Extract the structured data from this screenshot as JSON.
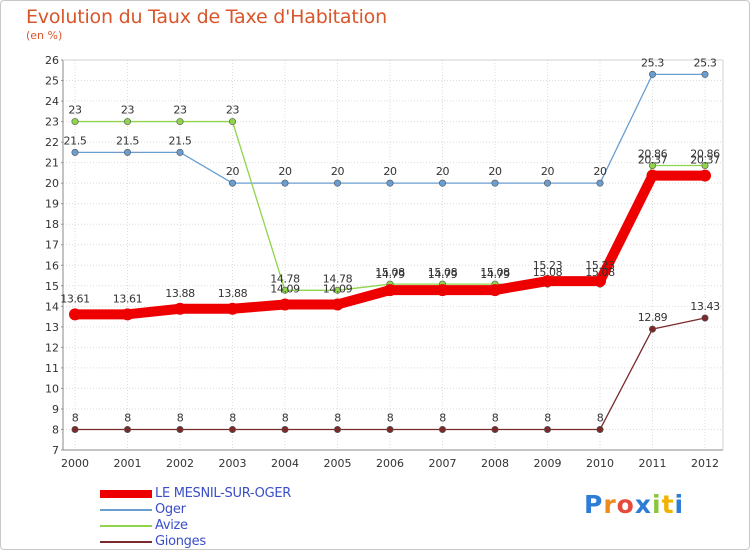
{
  "chart_data": {
    "type": "line",
    "title": "Evolution du Taux de Taxe d'Habitation",
    "unit_label": "(en %)",
    "xlabel": "",
    "ylabel": "",
    "ylim": [
      7,
      26
    ],
    "y_ticks": [
      "7",
      "8",
      "9",
      "10",
      "11",
      "12",
      "13",
      "14",
      "15",
      "16",
      "17",
      "18",
      "19",
      "20",
      "21",
      "22",
      "23",
      "24",
      "25",
      "26"
    ],
    "categories": [
      "2000",
      "2001",
      "2002",
      "2003",
      "2004",
      "2005",
      "2006",
      "2007",
      "2008",
      "2009",
      "2010",
      "2011",
      "2012"
    ],
    "grid": true,
    "legend_position": "bottom-left",
    "series": [
      {
        "name": "LE MESNIL-SUR-OGER",
        "color": "#ee0000",
        "values": [
          13.61,
          13.61,
          13.88,
          13.88,
          14.09,
          14.09,
          14.79,
          14.79,
          14.79,
          15.23,
          15.23,
          20.37,
          20.37
        ],
        "labels": [
          "13.61",
          "13.61",
          "13.88",
          "13.88",
          "14.09",
          "14.09",
          "14.79",
          "14.79",
          "14.79",
          "15.23",
          "15.23",
          "20.37",
          "20.37"
        ]
      },
      {
        "name": "Oger",
        "color": "#6a9ed0",
        "values": [
          21.5,
          21.5,
          21.5,
          20,
          20,
          20,
          20,
          20,
          20,
          20,
          20,
          25.3,
          25.3
        ],
        "labels": [
          "21.5",
          "21.5",
          "21.5",
          "20",
          "20",
          "20",
          "20",
          "20",
          "20",
          "20",
          "20",
          "25.3",
          "25.3"
        ]
      },
      {
        "name": "Avize",
        "color": "#8fd44a",
        "values": [
          23,
          23,
          23,
          23,
          14.78,
          14.78,
          15.08,
          15.08,
          15.08,
          15.08,
          15.08,
          20.86,
          20.86
        ],
        "labels": [
          "23",
          "23",
          "23",
          "23",
          "14.78",
          "14.78",
          "15.08",
          "15.08",
          "15.08",
          "15.08",
          "15.08",
          "20.86",
          "20.86"
        ]
      },
      {
        "name": "Gionges",
        "color": "#7a2a2a",
        "values": [
          8,
          8,
          8,
          8,
          8,
          8,
          8,
          8,
          8,
          8,
          8,
          12.89,
          13.43
        ],
        "labels": [
          "8",
          "8",
          "8",
          "8",
          "8",
          "8",
          "8",
          "8",
          "8",
          "8",
          "8",
          "12.89",
          "13.43"
        ]
      }
    ]
  },
  "logo": {
    "text": "Proxiti",
    "letter_colors": [
      "#2d7dd6",
      "#f08a1c",
      "#e64a3c",
      "#2d7dd6",
      "#8cc63f",
      "#f0b400",
      "#2d7dd6"
    ]
  }
}
